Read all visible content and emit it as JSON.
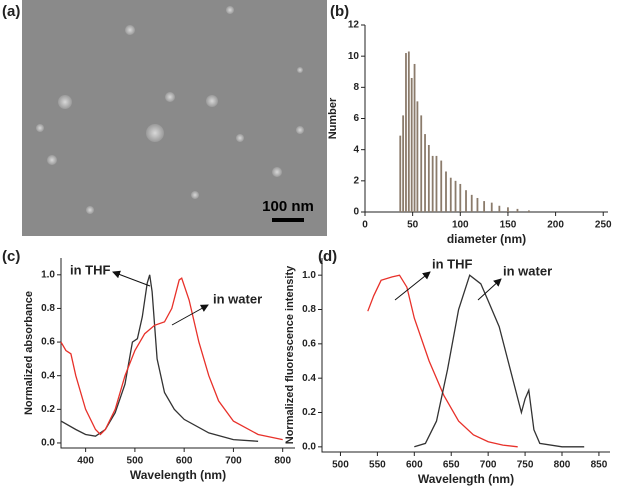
{
  "chart_data": [
    {
      "type": "image",
      "label": "(a)",
      "scale_bar": "100 nm"
    },
    {
      "type": "bar",
      "label": "(b)",
      "xlabel": "diameter (nm)",
      "ylabel": "Number",
      "color": "#8b7b6b",
      "x": [
        37,
        40,
        43,
        46,
        49,
        52,
        55,
        59,
        63,
        67,
        71,
        75,
        80,
        85,
        90,
        95,
        100,
        106,
        112,
        118,
        125,
        133,
        141,
        150,
        160,
        172
      ],
      "values": [
        4.9,
        6.2,
        10.2,
        10.3,
        8.6,
        9.5,
        7.1,
        6.2,
        5.0,
        4.3,
        3.6,
        3.6,
        3.3,
        2.6,
        2.2,
        2.0,
        1.8,
        1.4,
        1.1,
        0.9,
        0.7,
        0.6,
        0.4,
        0.3,
        0.2,
        0.1
      ],
      "xlim": [
        0,
        255
      ],
      "xticks": [
        0,
        50,
        100,
        150,
        200,
        250
      ],
      "ylim": [
        0,
        12
      ],
      "yticks": [
        0,
        2,
        4,
        6,
        8,
        10,
        12
      ]
    },
    {
      "type": "line",
      "label": "(c)",
      "xlabel": "Wavelength (nm)",
      "ylabel": "Normalized absorbance",
      "xlim": [
        350,
        825
      ],
      "xticks": [
        400,
        500,
        600,
        700,
        800
      ],
      "ylim": [
        -0.03,
        1.1
      ],
      "yticks": [
        {
          "value": 0,
          "label": "0.0"
        },
        {
          "value": 0.2,
          "label": "0.2"
        },
        {
          "value": 0.4,
          "label": "0.4"
        },
        {
          "value": 0.6,
          "label": "0.6"
        },
        {
          "value": 0.8,
          "label": "0.8"
        },
        {
          "value": 1,
          "label": "1.0"
        }
      ],
      "annotations": [
        "in THF",
        "in water"
      ],
      "series": [
        {
          "name": "in THF",
          "color": "#333333",
          "x": [
            350,
            380,
            400,
            420,
            440,
            460,
            480,
            495,
            505,
            515,
            525,
            530,
            535,
            545,
            560,
            580,
            600,
            650,
            700,
            750
          ],
          "values": [
            0.13,
            0.08,
            0.05,
            0.04,
            0.08,
            0.18,
            0.35,
            0.6,
            0.62,
            0.75,
            0.95,
            1.0,
            0.9,
            0.5,
            0.3,
            0.2,
            0.14,
            0.06,
            0.02,
            0.01
          ]
        },
        {
          "name": "in water",
          "color": "#e8312a",
          "x": [
            350,
            360,
            370,
            380,
            400,
            420,
            430,
            440,
            460,
            480,
            500,
            520,
            540,
            560,
            575,
            590,
            595,
            610,
            630,
            650,
            670,
            700,
            750,
            800
          ],
          "values": [
            0.6,
            0.55,
            0.53,
            0.4,
            0.2,
            0.08,
            0.05,
            0.08,
            0.2,
            0.4,
            0.55,
            0.65,
            0.7,
            0.72,
            0.8,
            0.97,
            0.98,
            0.85,
            0.6,
            0.4,
            0.25,
            0.13,
            0.05,
            0.02
          ]
        }
      ]
    },
    {
      "type": "line",
      "label": "(d)",
      "xlabel": "Wavelength (nm)",
      "ylabel": "Normalized fluorescence intensity",
      "xlim": [
        475,
        865
      ],
      "xticks": [
        500,
        550,
        600,
        650,
        700,
        750,
        800,
        850
      ],
      "ylim": [
        -0.03,
        1.1
      ],
      "yticks": [
        {
          "value": 0,
          "label": "0.0"
        },
        {
          "value": 0.2,
          "label": "0.2"
        },
        {
          "value": 0.4,
          "label": "0.4"
        },
        {
          "value": 0.6,
          "label": "0.6"
        },
        {
          "value": 0.8,
          "label": "0.8"
        },
        {
          "value": 1,
          "label": "1.0"
        }
      ],
      "annotations": [
        "in THF",
        "in water"
      ],
      "series": [
        {
          "name": "in THF",
          "color": "#e8312a",
          "x": [
            537,
            545,
            555,
            570,
            580,
            590,
            600,
            620,
            640,
            660,
            680,
            700,
            720,
            740
          ],
          "values": [
            0.79,
            0.88,
            0.97,
            0.99,
            1.0,
            0.93,
            0.75,
            0.5,
            0.3,
            0.15,
            0.07,
            0.03,
            0.01,
            0.0
          ]
        },
        {
          "name": "in water",
          "color": "#333333",
          "x": [
            600,
            615,
            630,
            645,
            660,
            675,
            690,
            700,
            715,
            730,
            745,
            750,
            755,
            762,
            770,
            800,
            830
          ],
          "values": [
            0.0,
            0.02,
            0.15,
            0.45,
            0.8,
            1.0,
            0.95,
            0.85,
            0.7,
            0.45,
            0.2,
            0.28,
            0.33,
            0.1,
            0.02,
            0.0,
            0.0
          ]
        }
      ]
    }
  ]
}
